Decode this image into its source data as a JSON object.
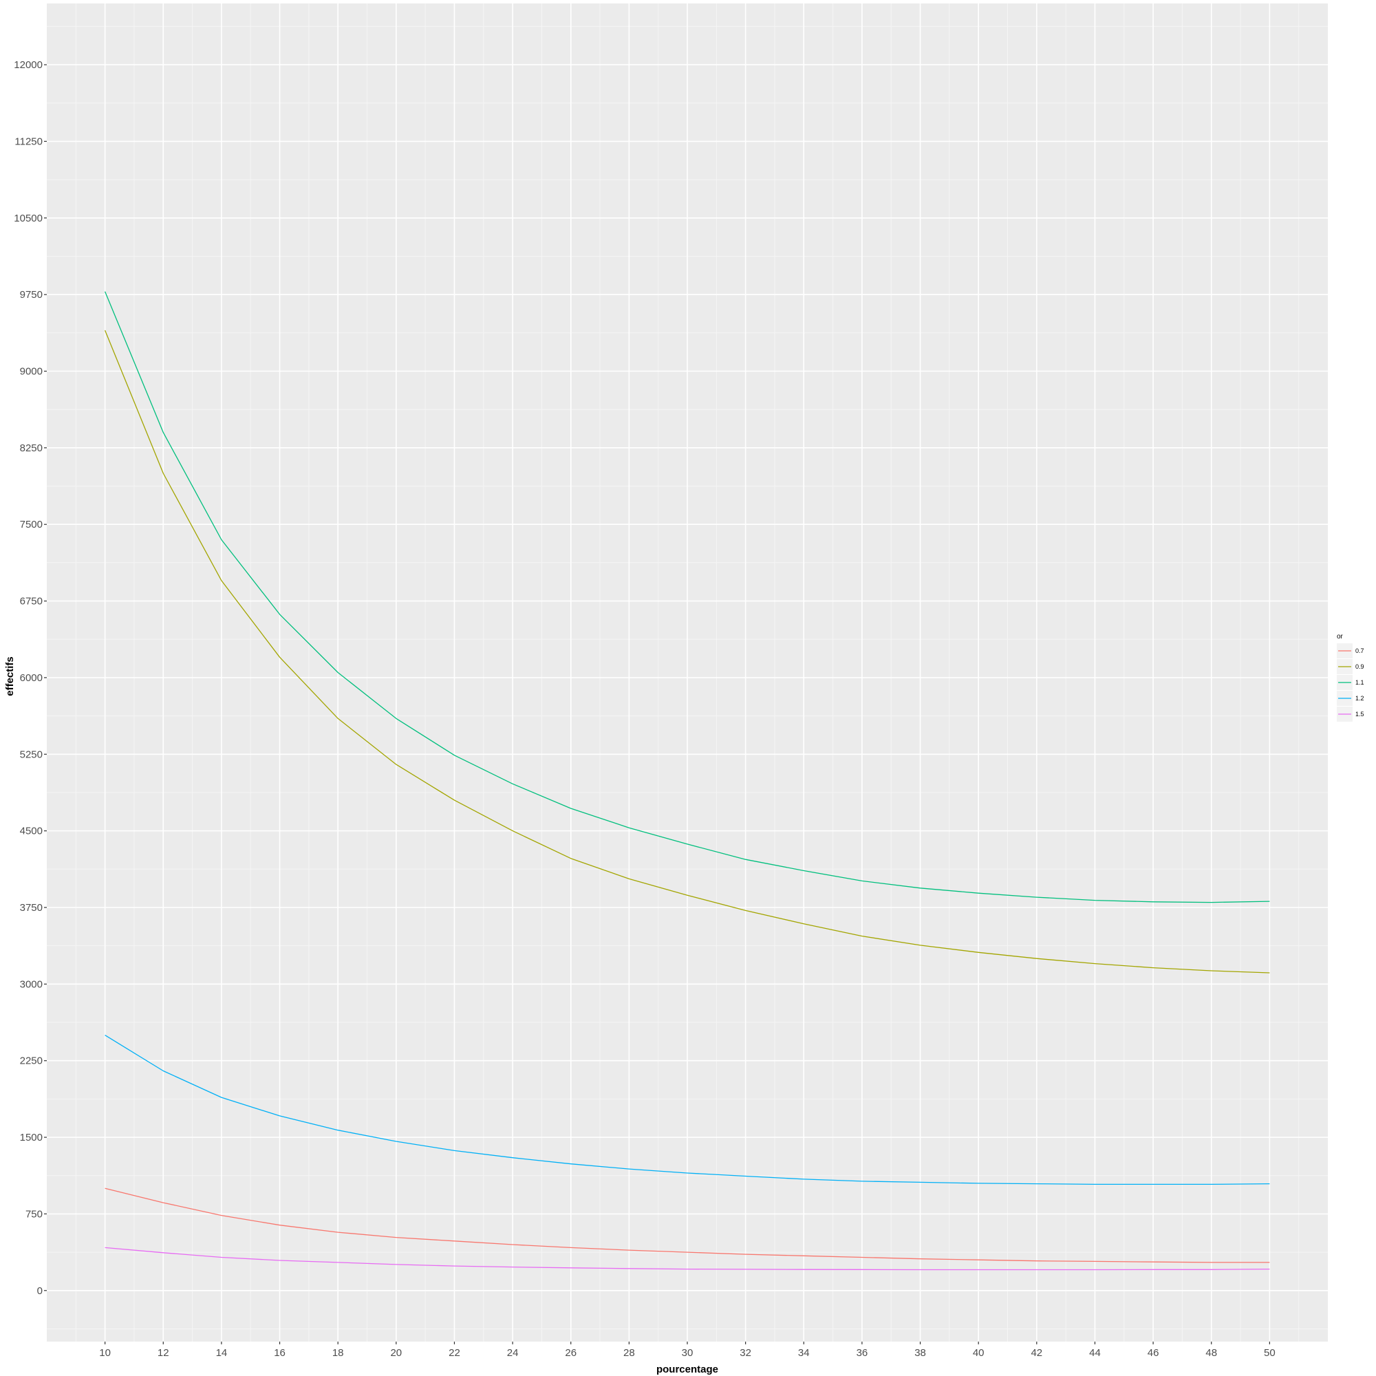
{
  "chart_data": {
    "type": "line",
    "title": "",
    "xlabel": "pourcentage",
    "ylabel": "effectifs",
    "xlim": [
      8,
      52
    ],
    "ylim": [
      -500,
      12600
    ],
    "x_ticks": [
      10,
      12,
      14,
      16,
      18,
      20,
      22,
      24,
      26,
      28,
      30,
      32,
      34,
      36,
      38,
      40,
      42,
      44,
      46,
      48,
      50
    ],
    "y_ticks": [
      0,
      750,
      1500,
      2250,
      3000,
      3750,
      4500,
      5250,
      6000,
      6750,
      7500,
      8250,
      9000,
      9750,
      10500,
      11250,
      12000
    ],
    "grid": true,
    "legend": {
      "title": "or",
      "position": "right"
    },
    "x": [
      10,
      12,
      14,
      16,
      18,
      20,
      22,
      24,
      26,
      28,
      30,
      32,
      34,
      36,
      38,
      40,
      42,
      44,
      46,
      48,
      50
    ],
    "series": [
      {
        "name": "0.7",
        "color": "#F8766D",
        "values": [
          1000,
          860,
          735,
          640,
          570,
          520,
          485,
          450,
          420,
          395,
          375,
          355,
          340,
          325,
          310,
          300,
          290,
          285,
          280,
          275,
          275
        ]
      },
      {
        "name": "0.9",
        "color": "#A3A500",
        "values": [
          9400,
          8000,
          6950,
          6200,
          5600,
          5150,
          4800,
          4500,
          4230,
          4030,
          3870,
          3720,
          3590,
          3470,
          3380,
          3310,
          3250,
          3200,
          3160,
          3130,
          3110
        ]
      },
      {
        "name": "1.1",
        "color": "#00BF7D",
        "values": [
          9780,
          8400,
          7350,
          6620,
          6050,
          5600,
          5240,
          4960,
          4720,
          4530,
          4370,
          4220,
          4110,
          4010,
          3940,
          3890,
          3850,
          3820,
          3805,
          3800,
          3810
        ]
      },
      {
        "name": "1.2",
        "color": "#00B0F6",
        "values": [
          2500,
          2150,
          1890,
          1710,
          1570,
          1460,
          1370,
          1300,
          1240,
          1190,
          1150,
          1120,
          1090,
          1070,
          1060,
          1050,
          1045,
          1040,
          1040,
          1040,
          1045
        ]
      },
      {
        "name": "1.5",
        "color": "#E76BF3",
        "values": [
          420,
          370,
          325,
          295,
          275,
          255,
          240,
          230,
          222,
          215,
          210,
          208,
          206,
          205,
          204,
          204,
          204,
          204,
          205,
          205,
          210
        ]
      }
    ]
  }
}
